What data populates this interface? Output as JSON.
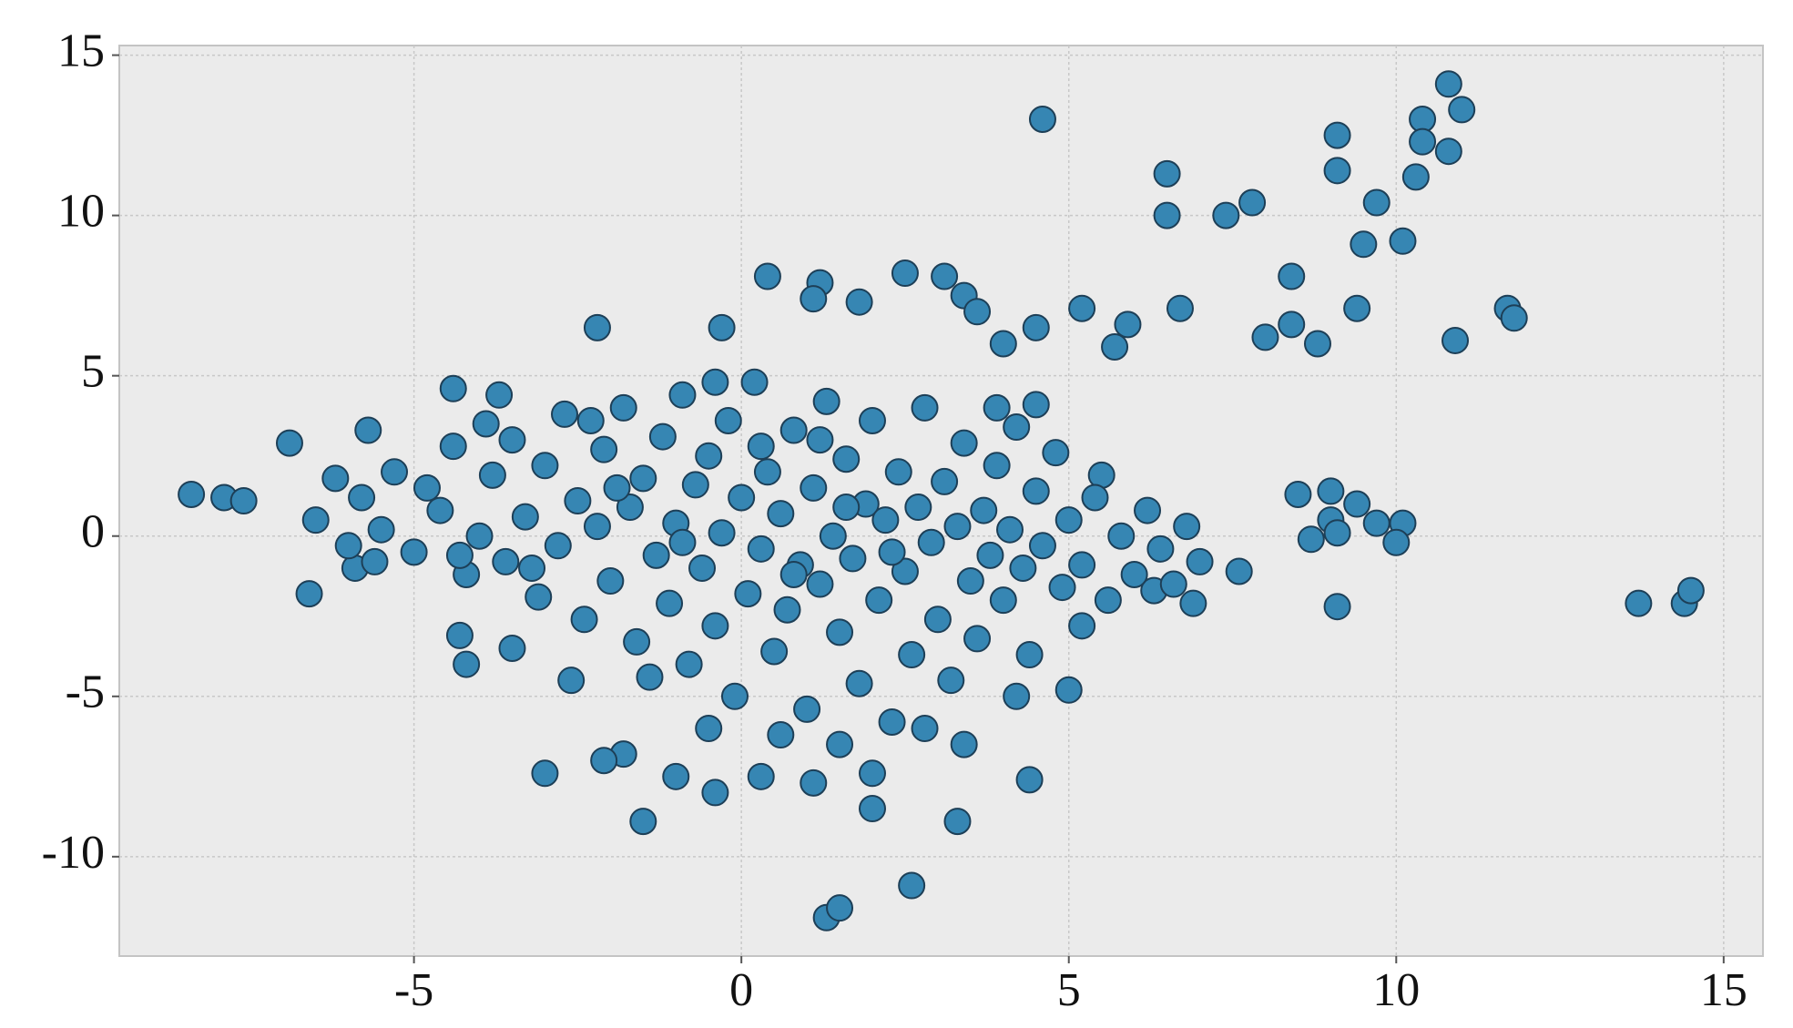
{
  "chart_data": {
    "type": "scatter",
    "color": "#3686b3",
    "edgecolor": "#1d3f57",
    "grid": true,
    "xlim": [
      -9.5,
      15.6
    ],
    "ylim": [
      -13.1,
      15.3
    ],
    "xticks": [
      -5,
      0,
      5,
      10,
      15
    ],
    "yticks": [
      -10,
      -5,
      0,
      5,
      10,
      15
    ],
    "x": [
      4.6,
      10.8,
      11.0,
      10.4,
      10.8,
      10.4,
      9.1,
      9.1,
      10.3,
      6.5,
      6.5,
      7.4,
      7.8,
      9.7,
      9.5,
      10.1,
      8.4,
      9.4,
      6.7,
      5.2,
      5.9,
      5.7,
      8.0,
      8.4,
      8.8,
      10.9,
      11.7,
      11.8,
      13.7,
      14.4,
      14.5,
      8.5,
      8.7,
      9.1,
      9.0,
      9.4,
      9.0,
      9.7,
      10.1,
      10.0,
      9.1,
      7.6,
      3.1,
      2.5,
      0.4,
      1.2,
      1.1,
      1.8,
      -0.3,
      -2.2,
      3.4,
      3.6,
      4.5,
      4.0,
      1.3,
      1.5,
      2.6,
      -1.5,
      3.3,
      2.0,
      -3.0,
      -1.0,
      -0.4,
      1.1,
      4.4,
      -1.8,
      -2.1,
      0.3,
      2.0,
      -8.4,
      -7.9,
      -7.6,
      -6.9,
      -6.6,
      -5.9,
      -5.7,
      -4.4,
      -3.7,
      -4.2,
      -4.3,
      -3.5,
      6.9,
      6.3,
      5.2,
      5.0,
      4.2,
      5.5,
      -6.5,
      -6.2,
      -6.0,
      -5.8,
      -5.5,
      -5.3,
      -5.0,
      -4.8,
      -4.6,
      -4.4,
      -4.2,
      -4.0,
      -3.8,
      -3.6,
      -3.5,
      -3.3,
      -3.1,
      -3.0,
      -2.8,
      -2.7,
      -2.5,
      -2.4,
      -2.2,
      -2.1,
      -2.0,
      -1.8,
      -1.7,
      -1.6,
      -1.5,
      -1.3,
      -1.2,
      -1.1,
      -1.0,
      -0.9,
      -0.8,
      -0.7,
      -0.6,
      -0.5,
      -0.4,
      -0.3,
      -0.2,
      -0.1,
      0.0,
      0.1,
      0.2,
      0.3,
      0.4,
      0.5,
      0.6,
      0.7,
      0.8,
      0.9,
      1.0,
      1.1,
      1.2,
      1.3,
      1.4,
      1.5,
      1.6,
      1.7,
      1.8,
      1.9,
      2.0,
      2.1,
      2.2,
      2.3,
      2.4,
      2.5,
      2.6,
      2.7,
      2.8,
      2.9,
      3.0,
      3.1,
      3.2,
      3.3,
      3.4,
      3.5,
      3.6,
      3.7,
      3.8,
      3.9,
      4.0,
      4.1,
      4.2,
      4.3,
      4.4,
      4.5,
      4.6,
      4.8,
      4.9,
      5.0,
      5.2,
      5.4,
      5.6,
      5.8,
      6.0,
      6.2,
      6.4,
      6.6,
      6.8,
      7.0,
      -2.6,
      -1.4,
      -0.5,
      0.6,
      1.5,
      2.8,
      3.4,
      -3.2,
      -1.9,
      0.8,
      1.6,
      -0.9,
      2.3,
      -4.3,
      -5.6,
      0.3,
      1.2,
      -2.3,
      3.9,
      4.5,
      -3.9,
      -0.4
    ],
    "values": [
      13.0,
      14.1,
      13.3,
      13.0,
      12.0,
      12.3,
      12.5,
      11.4,
      11.2,
      11.3,
      10.0,
      10.0,
      10.4,
      10.4,
      9.1,
      9.2,
      8.1,
      7.1,
      7.1,
      7.1,
      6.6,
      5.9,
      6.2,
      6.6,
      6.0,
      6.1,
      7.1,
      6.8,
      -2.1,
      -2.1,
      -1.7,
      1.3,
      -0.1,
      -2.2,
      1.4,
      1.0,
      0.5,
      0.4,
      0.4,
      -0.2,
      0.1,
      -1.1,
      8.1,
      8.2,
      8.1,
      7.9,
      7.4,
      7.3,
      6.5,
      6.5,
      7.5,
      7.0,
      6.5,
      6.0,
      -11.9,
      -11.6,
      -10.9,
      -8.9,
      -8.9,
      -8.5,
      -7.4,
      -7.5,
      -8.0,
      -7.7,
      -7.6,
      -6.8,
      -7.0,
      -7.5,
      -7.4,
      1.3,
      1.2,
      1.1,
      2.9,
      -1.8,
      -1.0,
      3.3,
      4.6,
      4.4,
      -4.0,
      -3.1,
      -3.5,
      -2.1,
      -1.7,
      -2.8,
      -4.8,
      -5.0,
      1.9,
      0.5,
      1.8,
      -0.3,
      1.2,
      0.2,
      2.0,
      -0.5,
      1.5,
      0.8,
      2.8,
      -1.2,
      0.0,
      1.9,
      -0.8,
      3.0,
      0.6,
      -1.9,
      2.2,
      -0.3,
      3.8,
      1.1,
      -2.6,
      0.3,
      2.7,
      -1.4,
      4.0,
      0.9,
      -3.3,
      1.8,
      -0.6,
      3.1,
      -2.1,
      0.4,
      4.4,
      -4.0,
      1.6,
      -1.0,
      2.5,
      -2.8,
      0.1,
      3.6,
      -5.0,
      1.2,
      -1.8,
      4.8,
      -0.4,
      2.0,
      -3.6,
      0.7,
      -2.3,
      3.3,
      -0.9,
      -5.4,
      1.5,
      -1.5,
      4.2,
      0.0,
      -3.0,
      2.4,
      -0.7,
      -4.6,
      1.0,
      3.6,
      -2.0,
      0.5,
      -5.8,
      2.0,
      -1.1,
      -3.7,
      0.9,
      4.0,
      -0.2,
      -2.6,
      1.7,
      -4.5,
      0.3,
      2.9,
      -1.4,
      -3.2,
      0.8,
      -0.6,
      2.2,
      -2.0,
      0.2,
      3.4,
      -1.0,
      -3.7,
      1.4,
      -0.3,
      2.6,
      -1.6,
      0.5,
      -0.9,
      1.2,
      -2.0,
      0.0,
      -1.2,
      0.8,
      -0.4,
      -1.5,
      0.3,
      -0.8,
      -4.5,
      -4.4,
      -6.0,
      -6.2,
      -6.5,
      -6.0,
      -6.5,
      -1.0,
      1.5,
      -1.2,
      0.9,
      -0.2,
      -0.5,
      -0.6,
      -0.8,
      2.8,
      3.0,
      3.6,
      4.0,
      4.1,
      3.5,
      4.8
    ]
  }
}
